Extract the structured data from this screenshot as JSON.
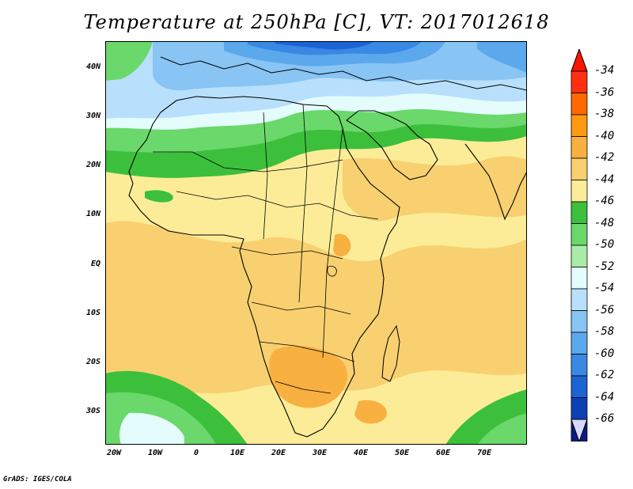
{
  "title": "Temperature at 250hPa [C], VT: 2017012618",
  "credit": "GrADS: IGES/COLA",
  "lat_labels": [
    "40N",
    "30N",
    "20N",
    "10N",
    "EQ",
    "10S",
    "20S",
    "30S"
  ],
  "lon_labels": [
    "20W",
    "10W",
    "0",
    "10E",
    "20E",
    "30E",
    "40E",
    "50E",
    "60E",
    "70E"
  ],
  "colorbar": {
    "labels": [
      "-34",
      "-36",
      "-38",
      "-40",
      "-42",
      "-44",
      "-46",
      "-48",
      "-50",
      "-52",
      "-54",
      "-56",
      "-58",
      "-60",
      "-62",
      "-64",
      "-66"
    ],
    "colors": [
      "#ff3010",
      "#ff6a00",
      "#ff9a10",
      "#f8b040",
      "#f8d070",
      "#fcec98",
      "#3cc03c",
      "#6ad86a",
      "#a8eca8",
      "#e4fcfc",
      "#b8e0fc",
      "#88c4f4",
      "#5ca8ec",
      "#3888e4",
      "#1c64d4",
      "#0c40b4",
      "#081c84"
    ],
    "top_arrow_color": "#ff1400",
    "bottom_arrow_color": "#d8d8fc"
  },
  "chart_data": {
    "type": "heatmap",
    "variable": "Temperature at 250hPa",
    "units": "C",
    "valid_time": "2017012618",
    "lon_range": [
      -22,
      80
    ],
    "lat_range": [
      -37,
      45
    ],
    "contour_levels": [
      -34,
      -36,
      -38,
      -40,
      -42,
      -44,
      -46,
      -48,
      -50,
      -52,
      -54,
      -56,
      -58,
      -60,
      -62,
      -64,
      -66
    ]
  }
}
